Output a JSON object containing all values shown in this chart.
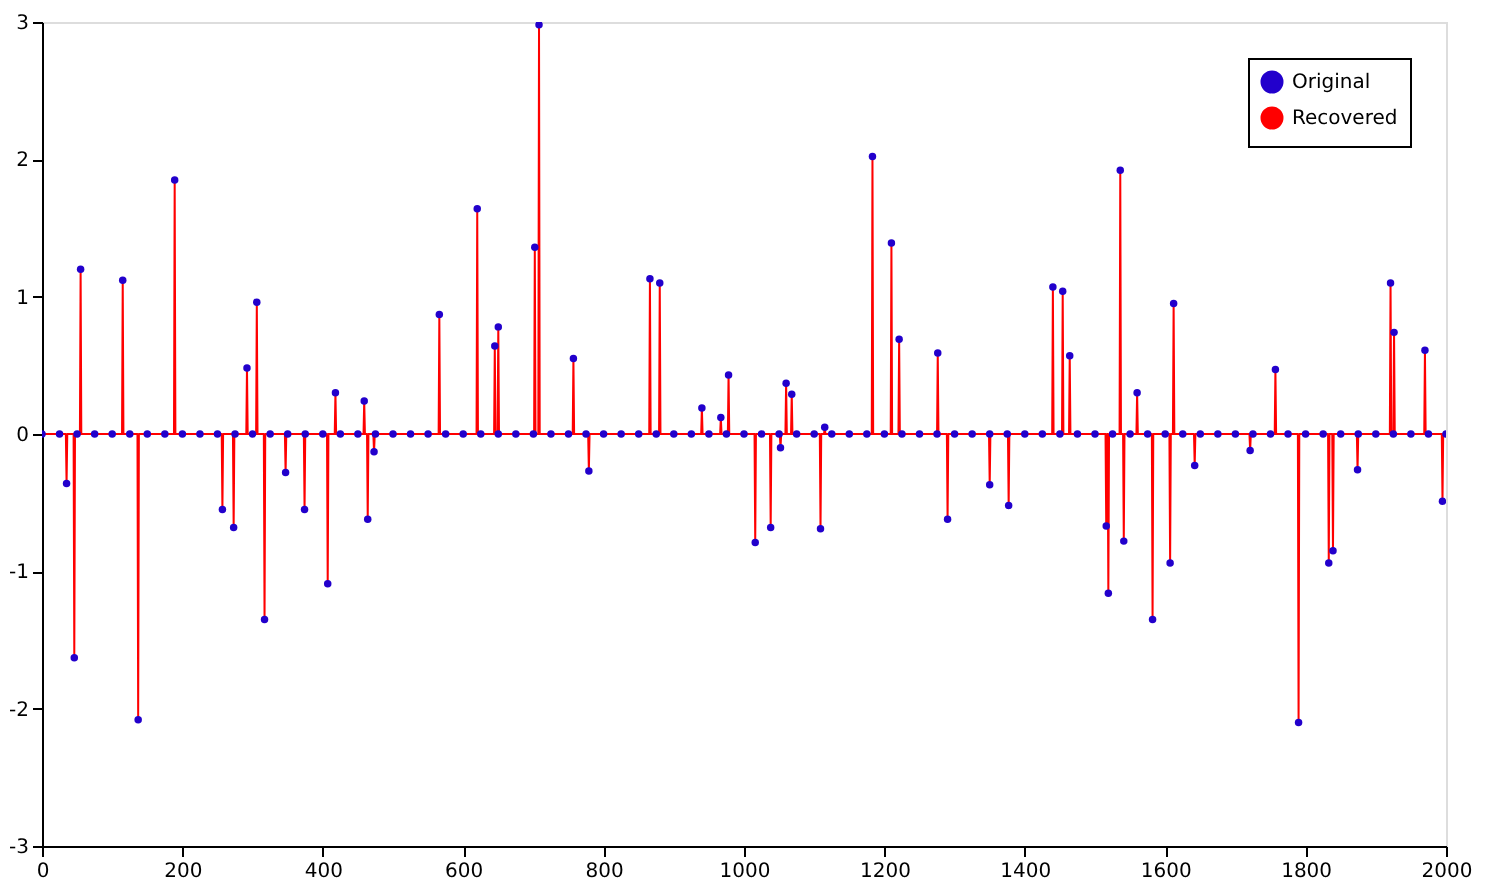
{
  "chart_data": {
    "type": "scatter",
    "xlim": [
      0,
      2000
    ],
    "xticks": [
      0,
      200,
      400,
      600,
      800,
      1000,
      1200,
      1400,
      1600,
      1800,
      2000
    ],
    "ylim": [
      -3,
      3
    ],
    "yticks": [
      -3,
      -2,
      -1,
      0,
      1,
      2,
      3
    ],
    "grid": false,
    "legend": "top right",
    "series": [
      {
        "name": "Original",
        "marker": "circle",
        "color": "#2200cc",
        "x": [
          35,
          46,
          55,
          115,
          137,
          189,
          257,
          273,
          292,
          306,
          317,
          347,
          374,
          407,
          418,
          459,
          464,
          473,
          566,
          620,
          645,
          650,
          702,
          708,
          757,
          779,
          866,
          880,
          940,
          967,
          978,
          1016,
          1038,
          1052,
          1060,
          1068,
          1109,
          1115,
          1183,
          1210,
          1221,
          1276,
          1290,
          1350,
          1377,
          1440,
          1454,
          1464,
          1516,
          1519,
          1536,
          1541,
          1560,
          1582,
          1607,
          1612,
          1642,
          1721,
          1757,
          1790,
          1833,
          1839,
          1874,
          1921,
          1926,
          1970,
          1995,
          0,
          25,
          50,
          75,
          100,
          125,
          150,
          175,
          200,
          225,
          250,
          275,
          300,
          325,
          350,
          375,
          400,
          425,
          450,
          475,
          500,
          525,
          550,
          575,
          600,
          625,
          650,
          675,
          700,
          725,
          750,
          775,
          800,
          825,
          850,
          875,
          900,
          925,
          950,
          975,
          1000,
          1025,
          1050,
          1075,
          1100,
          1125,
          1150,
          1175,
          1200,
          1225,
          1250,
          1275,
          1300,
          1325,
          1350,
          1375,
          1400,
          1425,
          1450,
          1475,
          1500,
          1525,
          1550,
          1575,
          1600,
          1625,
          1650,
          1675,
          1700,
          1725,
          1750,
          1775,
          1800,
          1825,
          1850,
          1875,
          1900,
          1925,
          1950,
          1975,
          2000
        ],
        "values": [
          -0.36,
          -1.63,
          1.2,
          1.12,
          -2.08,
          1.85,
          -0.55,
          -0.68,
          0.48,
          0.96,
          -1.35,
          -0.28,
          -0.55,
          -1.09,
          0.3,
          0.24,
          -0.62,
          -0.13,
          0.87,
          1.64,
          0.64,
          0.78,
          1.36,
          2.98,
          0.55,
          -0.27,
          1.13,
          1.1,
          0.19,
          0.12,
          0.43,
          -0.79,
          -0.68,
          -0.1,
          0.37,
          0.29,
          -0.69,
          0.05,
          2.02,
          1.39,
          0.69,
          0.59,
          -0.62,
          -0.37,
          -0.52,
          1.07,
          1.04,
          0.57,
          -0.67,
          -1.16,
          1.92,
          -0.78,
          0.3,
          -1.35,
          -0.94,
          0.95,
          -0.23,
          -0.12,
          0.47,
          -2.1,
          -0.94,
          -0.85,
          -0.26,
          1.1,
          0.74,
          0.61,
          -0.49,
          0,
          0,
          0,
          0,
          0,
          0,
          0,
          0,
          0,
          0,
          0,
          0,
          0,
          0,
          0,
          0,
          0,
          0,
          0,
          0,
          0,
          0,
          0,
          0,
          0,
          0,
          0,
          0,
          0,
          0,
          0,
          0,
          0,
          0,
          0,
          0,
          0,
          0,
          0,
          0,
          0,
          0,
          0,
          0,
          0,
          0,
          0,
          0,
          0,
          0,
          0,
          0,
          0,
          0,
          0,
          0,
          0,
          0,
          0,
          0,
          0,
          0,
          0,
          0,
          0,
          0,
          0,
          0,
          0,
          0,
          0,
          0,
          0,
          0,
          0,
          0,
          0,
          0,
          0,
          0,
          0
        ]
      },
      {
        "name": "Recovered",
        "type": "line",
        "line_style": "solid",
        "color": "#ff0000",
        "x": [
          0,
          34,
          35,
          36,
          45,
          46,
          47,
          54,
          55,
          56,
          114,
          115,
          116,
          136,
          137,
          138,
          188,
          189,
          190,
          256,
          257,
          258,
          272,
          273,
          274,
          291,
          292,
          293,
          305,
          306,
          307,
          316,
          317,
          318,
          346,
          347,
          348,
          373,
          374,
          375,
          406,
          407,
          408,
          417,
          418,
          419,
          458,
          459,
          460,
          463,
          464,
          465,
          472,
          473,
          474,
          565,
          566,
          567,
          619,
          620,
          621,
          644,
          645,
          646,
          649,
          650,
          651,
          701,
          702,
          703,
          707,
          708,
          709,
          756,
          757,
          758,
          778,
          779,
          780,
          865,
          866,
          867,
          879,
          880,
          881,
          939,
          940,
          941,
          966,
          967,
          968,
          977,
          978,
          979,
          1015,
          1016,
          1017,
          1037,
          1038,
          1039,
          1051,
          1052,
          1053,
          1059,
          1060,
          1061,
          1067,
          1068,
          1069,
          1108,
          1109,
          1110,
          1114,
          1115,
          1116,
          1182,
          1183,
          1184,
          1209,
          1210,
          1211,
          1220,
          1221,
          1222,
          1275,
          1276,
          1277,
          1289,
          1290,
          1291,
          1349,
          1350,
          1351,
          1376,
          1377,
          1378,
          1439,
          1440,
          1441,
          1453,
          1454,
          1455,
          1463,
          1464,
          1465,
          1515,
          1516,
          1517,
          1518,
          1519,
          1520,
          1535,
          1536,
          1537,
          1540,
          1541,
          1542,
          1559,
          1560,
          1561,
          1581,
          1582,
          1583,
          1606,
          1607,
          1608,
          1611,
          1612,
          1613,
          1641,
          1642,
          1643,
          1720,
          1721,
          1722,
          1756,
          1757,
          1758,
          1789,
          1790,
          1791,
          1832,
          1833,
          1834,
          1838,
          1839,
          1840,
          1873,
          1874,
          1875,
          1920,
          1921,
          1922,
          1925,
          1926,
          1927,
          1969,
          1970,
          1971,
          1994,
          1995,
          1996,
          2000
        ],
        "values": [
          0,
          0,
          -0.36,
          0,
          0,
          -1.63,
          0,
          0,
          1.2,
          0,
          0,
          1.12,
          0,
          0,
          -2.08,
          0,
          0,
          1.85,
          0,
          0,
          -0.55,
          0,
          0,
          -0.68,
          0,
          0,
          0.48,
          0,
          0,
          0.96,
          0,
          0,
          -1.35,
          0,
          0,
          -0.28,
          0,
          0,
          -0.55,
          0,
          0,
          -1.09,
          0,
          0,
          0.3,
          0,
          0,
          0.24,
          0,
          0,
          -0.62,
          0,
          0,
          -0.13,
          0,
          0,
          0.87,
          0,
          0,
          1.64,
          0,
          0,
          0.64,
          0,
          0,
          0.78,
          0,
          0,
          1.36,
          0,
          0,
          2.98,
          0,
          0,
          0.55,
          0,
          0,
          -0.27,
          0,
          0,
          1.13,
          0,
          0,
          1.1,
          0,
          0,
          0.19,
          0,
          0,
          0.12,
          0,
          0,
          0.43,
          0,
          0,
          -0.79,
          0,
          0,
          -0.68,
          0,
          0,
          -0.1,
          0,
          0,
          0.37,
          0,
          0,
          0.29,
          0,
          0,
          -0.69,
          0,
          0,
          0.05,
          0,
          0,
          2.02,
          0,
          0,
          1.39,
          0,
          0,
          0.69,
          0,
          0,
          0.59,
          0,
          0,
          -0.62,
          0,
          0,
          -0.37,
          0,
          0,
          -0.52,
          0,
          0,
          1.07,
          0,
          0,
          1.04,
          0,
          0,
          0.57,
          0,
          0,
          -0.67,
          0,
          0,
          -1.16,
          0,
          0,
          1.92,
          0,
          0,
          -0.78,
          0,
          0,
          0.3,
          0,
          0,
          -1.35,
          0,
          0,
          -0.94,
          0,
          0,
          0.95,
          0,
          0,
          -0.23,
          0,
          0,
          -0.12,
          0,
          0,
          0.47,
          0,
          0,
          -2.1,
          0,
          0,
          -0.94,
          0,
          0,
          -0.85,
          0,
          0,
          -0.26,
          0,
          0,
          1.1,
          0,
          0,
          0.74,
          0,
          0,
          0.61,
          0,
          0,
          -0.49,
          0,
          0
        ]
      }
    ]
  }
}
